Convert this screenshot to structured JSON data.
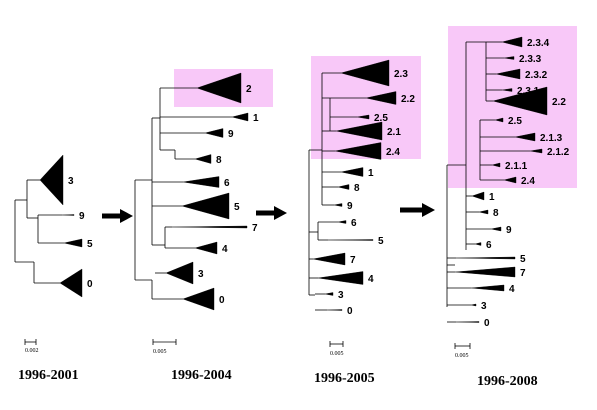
{
  "panels": [
    {
      "period": "1996-2001",
      "scale": "0.002",
      "clades": [
        {
          "label": "3",
          "size": "big"
        },
        {
          "label": "9",
          "size": "tip"
        },
        {
          "label": "5",
          "size": "small"
        },
        {
          "label": "0",
          "size": "big"
        }
      ]
    },
    {
      "period": "1996-2004",
      "scale": "0.005",
      "clades": [
        {
          "label": "2",
          "size": "big",
          "highlight": true
        },
        {
          "label": "1",
          "size": "small"
        },
        {
          "label": "9",
          "size": "small"
        },
        {
          "label": "8",
          "size": "small"
        },
        {
          "label": "6",
          "size": "med"
        },
        {
          "label": "5",
          "size": "big"
        },
        {
          "label": "7",
          "size": "tip"
        },
        {
          "label": "4",
          "size": "small"
        },
        {
          "label": "3",
          "size": "med"
        },
        {
          "label": "0",
          "size": "med"
        }
      ]
    },
    {
      "period": "1996-2005",
      "scale": "0.005",
      "clades": [
        {
          "label": "2.3",
          "size": "big",
          "highlight": true
        },
        {
          "label": "2.2",
          "size": "small",
          "highlight": true
        },
        {
          "label": "2.5",
          "size": "tiny",
          "highlight": true
        },
        {
          "label": "2.1",
          "size": "med",
          "highlight": true
        },
        {
          "label": "2.4",
          "size": "med",
          "highlight": true
        },
        {
          "label": "1",
          "size": "small"
        },
        {
          "label": "8",
          "size": "tiny"
        },
        {
          "label": "9",
          "size": "tiny"
        },
        {
          "label": "6",
          "size": "tiny"
        },
        {
          "label": "5",
          "size": "tip"
        },
        {
          "label": "7",
          "size": "med"
        },
        {
          "label": "4",
          "size": "med"
        },
        {
          "label": "3",
          "size": "tiny"
        },
        {
          "label": "0",
          "size": "tip"
        }
      ]
    },
    {
      "period": "1996-2008",
      "scale": "0.005",
      "clades": [
        {
          "label": "2.3.4",
          "size": "small",
          "highlight": true
        },
        {
          "label": "2.3.3",
          "size": "tiny",
          "highlight": true
        },
        {
          "label": "2.3.2",
          "size": "small",
          "highlight": true
        },
        {
          "label": "2.3.1",
          "size": "tiny",
          "highlight": true
        },
        {
          "label": "2.2",
          "size": "big",
          "highlight": true
        },
        {
          "label": "2.5",
          "size": "tiny",
          "highlight": true
        },
        {
          "label": "2.1.3",
          "size": "small",
          "highlight": true
        },
        {
          "label": "2.1.2",
          "size": "tiny",
          "highlight": true
        },
        {
          "label": "2.1.1",
          "size": "tiny",
          "highlight": true
        },
        {
          "label": "2.4",
          "size": "small",
          "highlight": true
        },
        {
          "label": "1",
          "size": "small"
        },
        {
          "label": "8",
          "size": "tiny"
        },
        {
          "label": "9",
          "size": "tiny"
        },
        {
          "label": "6",
          "size": "tiny"
        },
        {
          "label": "5",
          "size": "tip"
        },
        {
          "label": "7",
          "size": "med"
        },
        {
          "label": "4",
          "size": "small"
        },
        {
          "label": "3",
          "size": "tiny"
        },
        {
          "label": "0",
          "size": "tip"
        }
      ]
    }
  ],
  "colors": {
    "highlight": "#f8c8f8",
    "clade": "#000000",
    "background": "#ffffff"
  },
  "arrows": [
    "arrow-1",
    "arrow-2",
    "arrow-3"
  ]
}
